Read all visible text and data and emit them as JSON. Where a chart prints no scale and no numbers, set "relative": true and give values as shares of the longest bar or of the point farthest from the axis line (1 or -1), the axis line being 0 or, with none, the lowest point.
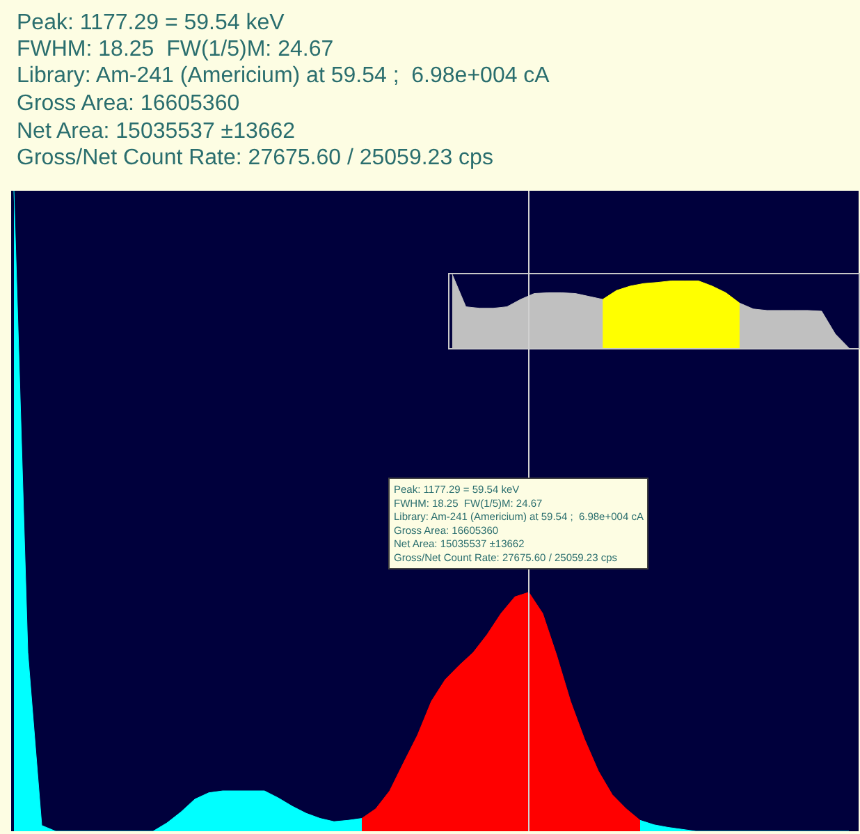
{
  "chart_data": [
    {
      "type": "area",
      "relative": true,
      "categories": [
        null,
        null,
        null,
        null,
        null,
        null,
        null,
        null,
        null,
        null,
        null,
        null,
        null,
        null,
        null,
        null,
        null,
        null,
        null,
        null,
        null,
        null,
        null,
        null,
        null,
        null,
        null,
        null,
        null,
        null,
        null,
        null,
        null,
        null,
        null,
        null,
        null,
        null,
        null,
        null,
        null,
        null,
        null,
        null,
        null,
        null,
        null,
        null,
        null,
        null,
        null,
        null,
        null,
        null,
        null,
        null,
        null,
        null,
        null,
        null,
        null
      ],
      "series": [
        {
          "color": "#00ffff",
          "values": [
            1.0,
            0.279,
            0.009,
            0,
            0,
            0,
            0,
            0,
            0,
            0,
            0,
            0.013,
            0.03,
            0.05,
            0.06,
            0.063,
            0.063,
            0.063,
            0.063,
            0.052,
            0.039,
            0.028,
            0.02,
            0.015,
            0.017,
            0.02,
            null,
            null,
            null,
            null,
            null,
            null,
            null,
            null,
            null,
            null,
            null,
            null,
            null,
            null,
            null,
            null,
            null,
            null,
            null,
            0.017,
            0.01,
            0.006,
            0.003,
            0,
            0,
            0,
            0,
            0,
            0,
            0,
            0,
            0,
            0,
            0,
            0
          ]
        },
        {
          "color": "#ff0000",
          "values": [
            null,
            null,
            null,
            null,
            null,
            null,
            null,
            null,
            null,
            null,
            null,
            null,
            null,
            null,
            null,
            null,
            null,
            null,
            null,
            null,
            null,
            null,
            null,
            null,
            null,
            0.02,
            0.035,
            0.063,
            0.107,
            0.15,
            0.203,
            0.237,
            0.259,
            0.279,
            0.307,
            0.34,
            0.366,
            0.373,
            0.34,
            0.275,
            0.203,
            0.144,
            0.094,
            0.057,
            0.035,
            0.017,
            null,
            null,
            null,
            null,
            null,
            null,
            null,
            null,
            null,
            null,
            null,
            null,
            null,
            null,
            null
          ]
        }
      ],
      "annotations": [
        "Peak: 1177.29 = 59.54 keV",
        "FWHM: 18.25  FW(1/5)M: 24.67",
        "Library: Am-241 (Americium) at 59.54 ;  6.98e+004 cA",
        "Gross Area: 16605360",
        "Net Area: 15035537 ±13662",
        "Gross/Net Count Rate: 27675.60 / 25059.23 cps",
        "Peak: 1177.29 = 59.54 keV\nFWHM: 18.25  FW(1/5)M: 24.67\nLibrary: Am-241 (Americium) at 59.54 ;  6.98e+004 cA\nGross Area: 16605360\nNet Area: 15035537 ±13662\nGross/Net Count Rate: 27675.60 / 25059.23 cps"
      ]
    },
    {
      "type": "area",
      "relative": true,
      "categories": [
        null,
        null,
        null,
        null,
        null,
        null,
        null,
        null,
        null,
        null,
        null,
        null,
        null,
        null,
        null,
        null,
        null,
        null,
        null,
        null,
        null,
        null,
        null,
        null,
        null,
        null,
        null,
        null,
        null,
        null
      ],
      "series": [
        {
          "color": "#c0c0c0",
          "values": [
            1.0,
            0.56,
            0.54,
            0.54,
            0.56,
            0.66,
            0.74,
            0.75,
            0.75,
            0.74,
            0.7,
            0.66,
            null,
            null,
            null,
            null,
            null,
            null,
            null,
            null,
            null,
            0.61,
            0.53,
            0.51,
            0.51,
            0.51,
            0.51,
            0.5,
            0.19,
            0
          ]
        },
        {
          "color": "#ffff00",
          "values": [
            null,
            null,
            null,
            null,
            null,
            null,
            null,
            null,
            null,
            null,
            null,
            0.66,
            0.78,
            0.84,
            0.875,
            0.89,
            0.91,
            0.91,
            0.91,
            0.84,
            0.75,
            0.61,
            null,
            null,
            null,
            null,
            null,
            null,
            null,
            null
          ]
        }
      ]
    }
  ]
}
